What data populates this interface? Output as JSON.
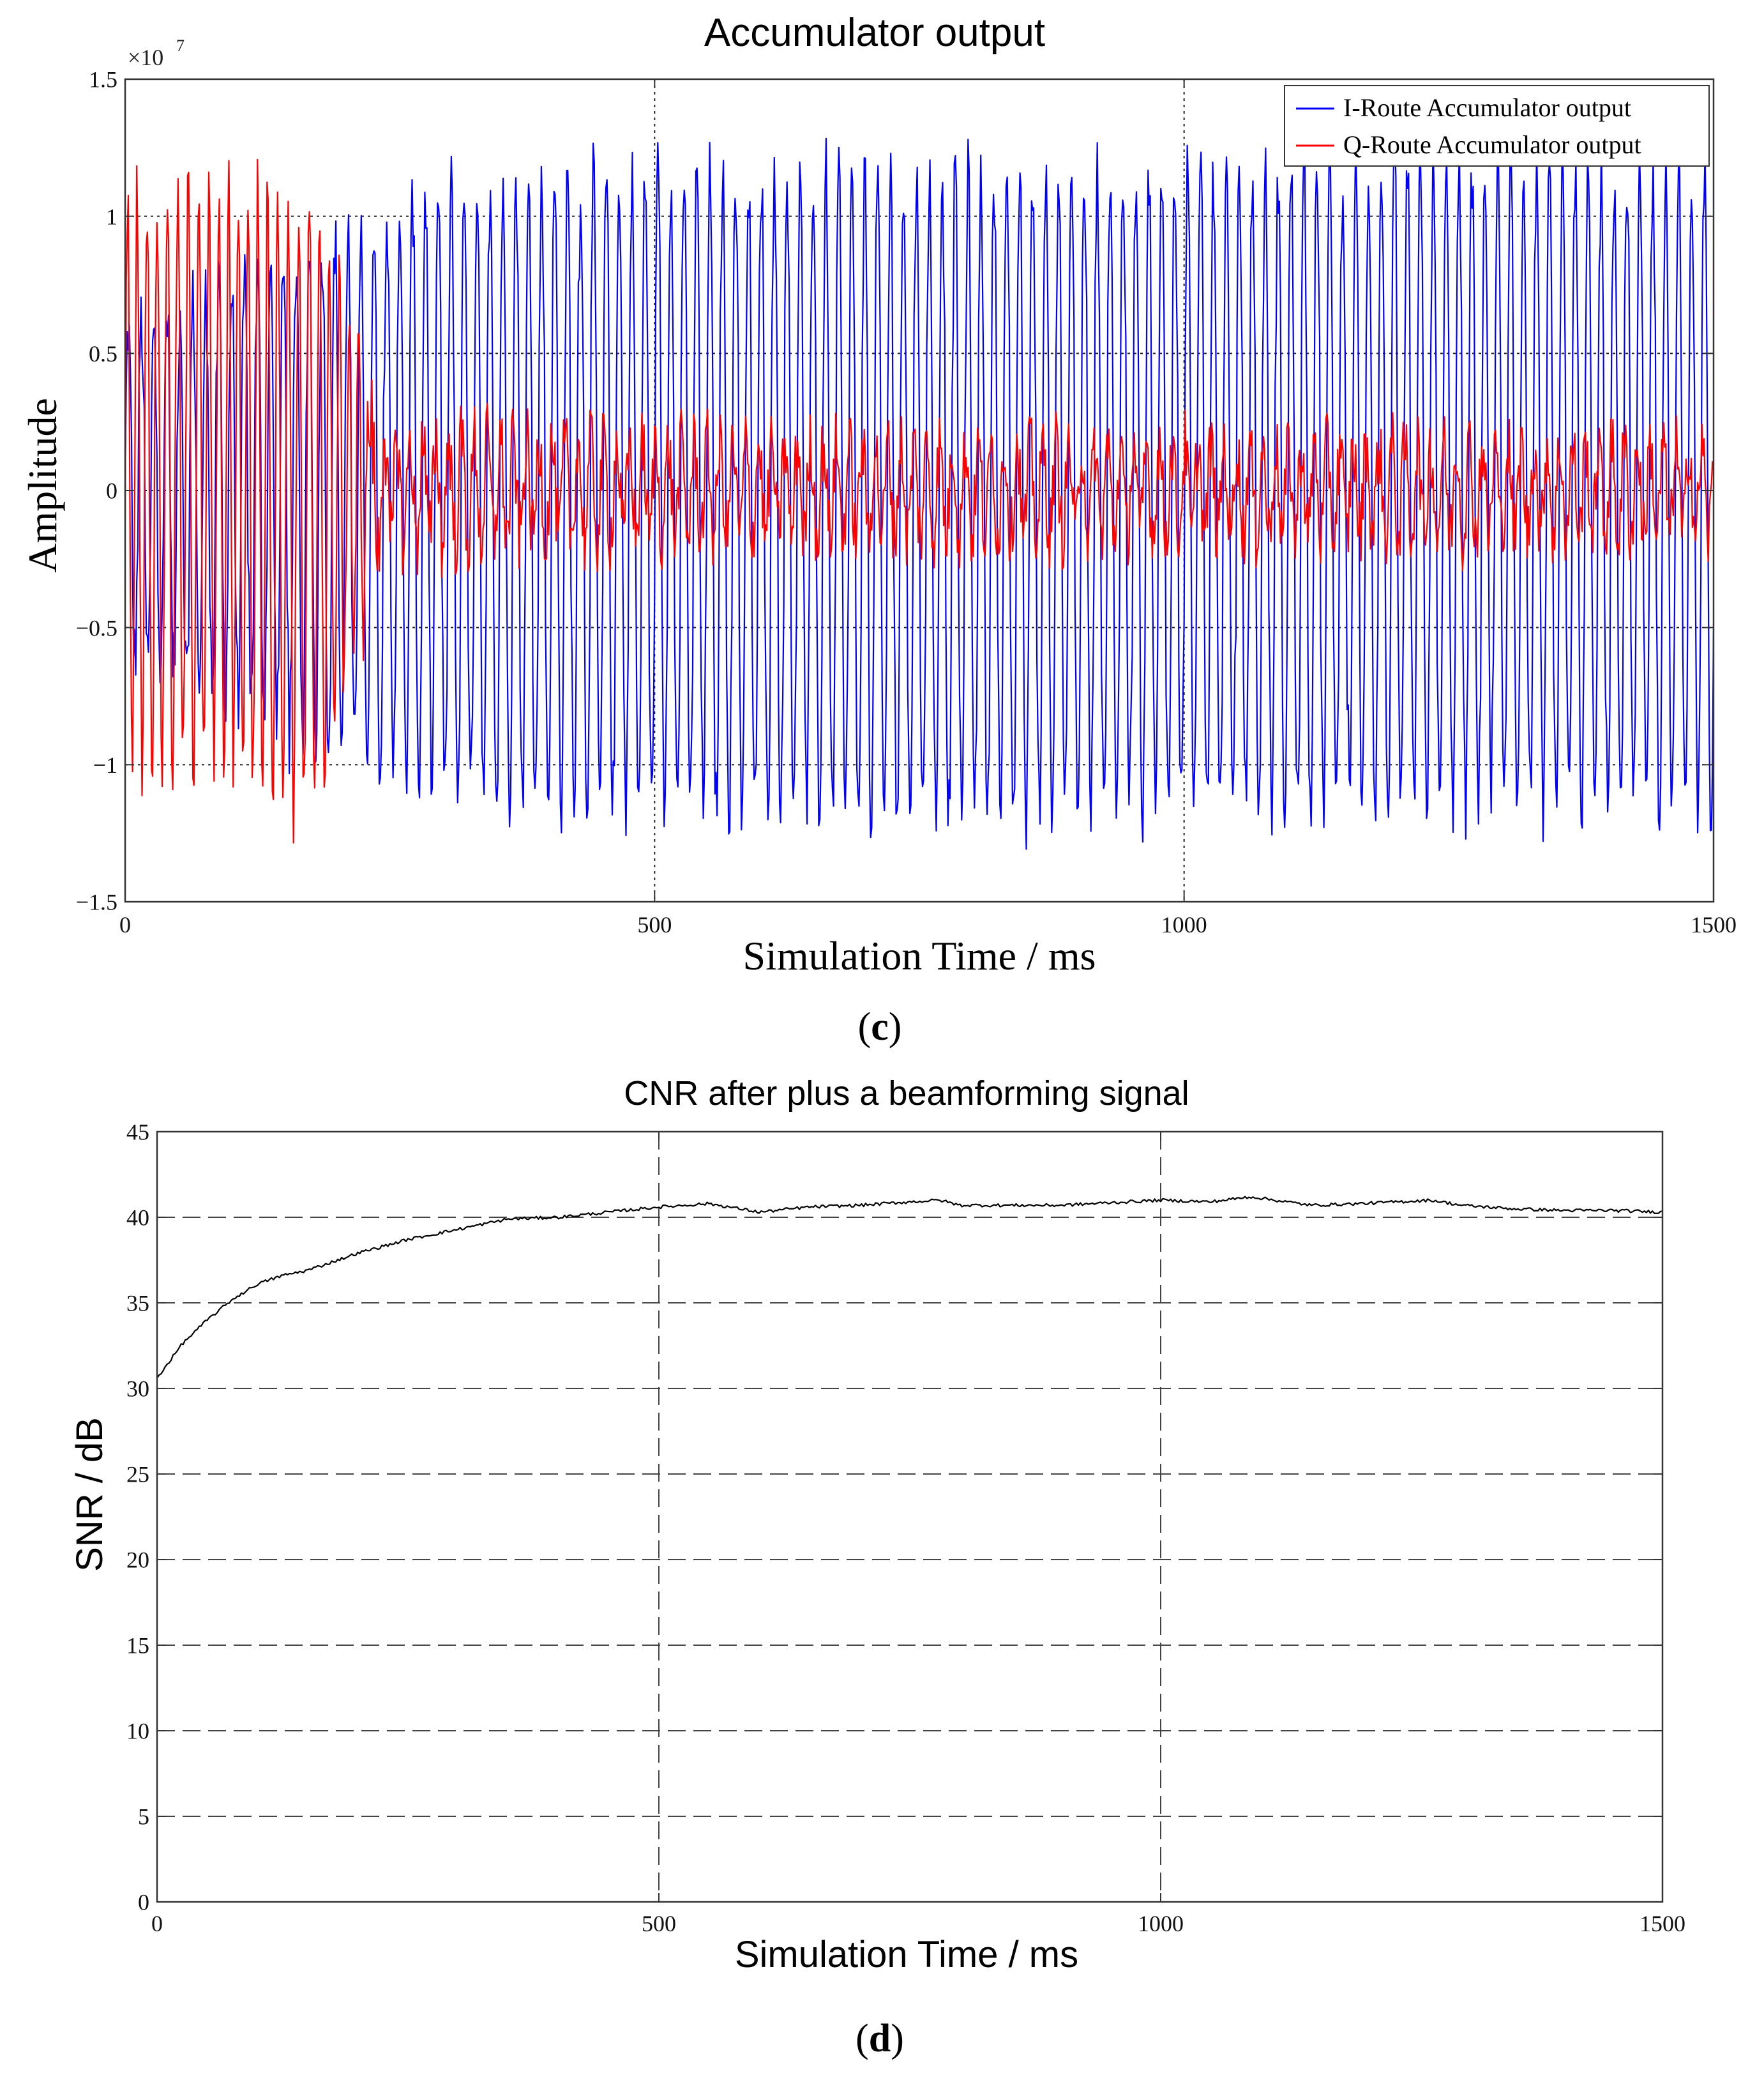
{
  "figure": {
    "panels": [
      {
        "tag": "c",
        "caption_open": "(",
        "caption_letter": "c",
        "caption_close": ")"
      },
      {
        "tag": "d",
        "caption_open": "(",
        "caption_letter": "d",
        "caption_close": ")"
      }
    ]
  },
  "chart_data": [
    {
      "type": "line",
      "title": "Accumulator output",
      "xlabel": "Simulation Time / ms",
      "ylabel": "Amplitude",
      "exponent_base": "×10",
      "exponent_power": "7",
      "xlim": [
        0,
        1500
      ],
      "ylim": [
        -1.5,
        1.5
      ],
      "xticks": [
        0,
        500,
        1000,
        1500
      ],
      "xtick_labels": [
        "0",
        "500",
        "1000",
        "1500"
      ],
      "yticks": [
        -1.5,
        -1,
        -0.5,
        0,
        0.5,
        1,
        1.5
      ],
      "ytick_labels": [
        "−1.5",
        "−1",
        "−0.5",
        "0",
        "0.5",
        "1",
        "1.5"
      ],
      "grid": "dotted",
      "legend_position": "top-right",
      "series": [
        {
          "name": "I-Route Accumulator output",
          "color": "#0000ff",
          "description": "oscillating signal, amplitude ≈ ±1.0 (×10^7), peaks up to ≈1.35 and troughs down to ≈−1.4 over 1500 ms; period ≈ 12 ms",
          "envelope": {
            "x": [
              0,
              150,
              230,
              300,
              500,
              750,
              1000,
              1250,
              1500
            ],
            "upper": [
              0.6,
              0.8,
              1.0,
              1.1,
              1.15,
              1.15,
              1.15,
              1.15,
              1.15
            ],
            "lower": [
              -0.6,
              -0.8,
              -1.0,
              -1.1,
              -1.15,
              -1.2,
              -1.15,
              -1.15,
              -1.15
            ]
          }
        },
        {
          "name": "Q-Route Accumulator output",
          "color": "#ff0000",
          "description": "large oscillation (≈ ±1.1) during 0–220 ms, then settling to a noisy band around 0 with amplitude ≈ ±0.3 (×10^7)",
          "envelope": {
            "x": [
              0,
              100,
              180,
              220,
              260,
              500,
              1000,
              1500
            ],
            "upper": [
              1.1,
              1.1,
              1.05,
              0.5,
              0.35,
              0.3,
              0.3,
              0.3
            ],
            "lower": [
              -1.0,
              -1.0,
              -1.2,
              -0.5,
              -0.35,
              -0.3,
              -0.3,
              -0.3
            ]
          }
        }
      ]
    },
    {
      "type": "line",
      "title": "CNR after plus a beamforming signal",
      "xlabel": "Simulation Time / ms",
      "ylabel": "SNR / dB",
      "xlim": [
        0,
        1500
      ],
      "ylim": [
        0,
        45
      ],
      "xticks": [
        0,
        500,
        1000,
        1500
      ],
      "xtick_labels": [
        "0",
        "500",
        "1000",
        "1500"
      ],
      "yticks": [
        0,
        5,
        10,
        15,
        20,
        25,
        30,
        35,
        40,
        45
      ],
      "ytick_labels": [
        "0",
        "5",
        "10",
        "15",
        "20",
        "25",
        "30",
        "35",
        "40",
        "45"
      ],
      "grid": "dashed",
      "series": [
        {
          "name": "SNR",
          "color": "#000000",
          "x": [
            0,
            25,
            50,
            75,
            100,
            125,
            150,
            200,
            250,
            300,
            350,
            400,
            450,
            500,
            550,
            600,
            650,
            700,
            750,
            780,
            800,
            900,
            1000,
            1050,
            1090,
            1150,
            1200,
            1270,
            1300,
            1350,
            1400,
            1450,
            1500
          ],
          "y": [
            30.6,
            32.6,
            34.0,
            35.2,
            36.1,
            36.6,
            36.9,
            37.9,
            38.7,
            39.3,
            39.9,
            40.0,
            40.3,
            40.6,
            40.8,
            40.3,
            40.6,
            40.7,
            40.9,
            41.0,
            40.7,
            40.7,
            41.0,
            40.9,
            41.2,
            40.7,
            40.8,
            41.0,
            40.7,
            40.5,
            40.4,
            40.4,
            40.3
          ]
        }
      ]
    }
  ]
}
